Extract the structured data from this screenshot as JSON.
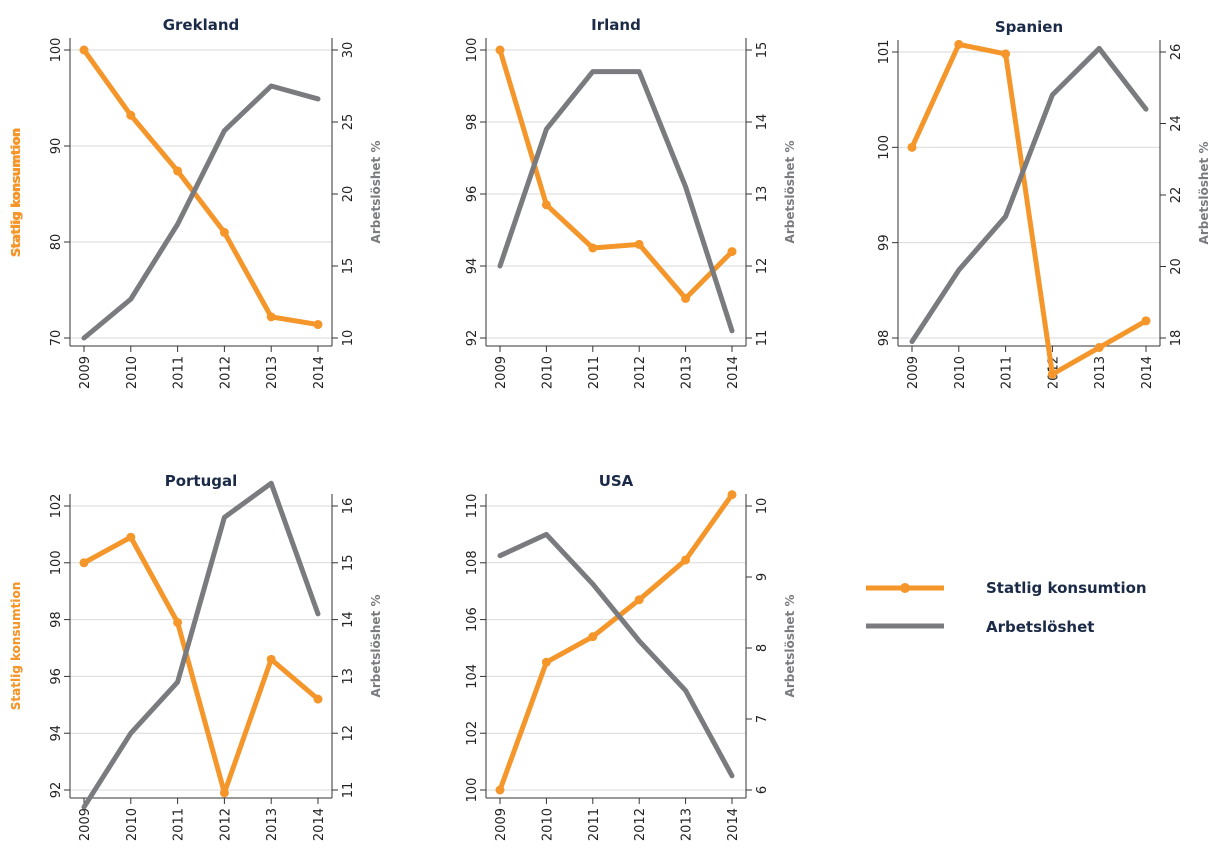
{
  "colors": {
    "consumption": "#f5962b",
    "unemployment": "#7a7b7f",
    "grid": "#d9d9d9",
    "axis": "#333333"
  },
  "legend": {
    "consumption_label": "Statlig konsumtion",
    "unemployment_label": "Arbetslöshet"
  },
  "chart_data": [
    {
      "type": "line",
      "title": "Grekland",
      "ylabel": "Statlig konsumtion",
      "y2label": "Arbetslöshet %",
      "x": [
        2009,
        2010,
        2011,
        2012,
        2013,
        2014
      ],
      "ylim": [
        70,
        100
      ],
      "yticks": [
        70,
        80,
        90,
        100
      ],
      "y2lim": [
        10,
        30
      ],
      "y2ticks": [
        10,
        15,
        20,
        25,
        30
      ],
      "series": [
        {
          "name": "Statlig konsumtion",
          "axis": "left",
          "markers": true,
          "values": [
            100,
            93.2,
            87.4,
            81,
            72.2,
            71.4
          ]
        },
        {
          "name": "Arbetslöshet",
          "axis": "right",
          "markers": false,
          "values": [
            10,
            12.7,
            17.9,
            24.4,
            27.5,
            26.6
          ]
        }
      ]
    },
    {
      "type": "line",
      "title": "Irland",
      "ylabel": "Statlig konsumtion",
      "y2label": "Arbetslöshet %",
      "x": [
        2009,
        2010,
        2011,
        2012,
        2013,
        2014
      ],
      "ylim": [
        92,
        100
      ],
      "yticks": [
        92,
        94,
        96,
        98,
        100
      ],
      "y2lim": [
        11,
        15
      ],
      "y2ticks": [
        11,
        12,
        13,
        14,
        15
      ],
      "series": [
        {
          "name": "Statlig konsumtion",
          "axis": "left",
          "markers": true,
          "values": [
            100,
            95.7,
            94.5,
            94.6,
            93.1,
            94.4
          ]
        },
        {
          "name": "Arbetslöshet",
          "axis": "right",
          "markers": false,
          "values": [
            12,
            13.9,
            14.7,
            14.7,
            13.1,
            11.1
          ]
        }
      ]
    },
    {
      "type": "line",
      "title": "Spanien",
      "ylabel": "Statlig konsumtion",
      "y2label": "Arbetslöshet %",
      "x": [
        2009,
        2010,
        2011,
        2012,
        2013,
        2014
      ],
      "ylim": [
        98,
        101
      ],
      "yticks": [
        98,
        99,
        100,
        101
      ],
      "y2lim": [
        18,
        26
      ],
      "y2ticks": [
        18,
        20,
        22,
        24,
        26
      ],
      "series": [
        {
          "name": "Statlig konsumtion",
          "axis": "left",
          "markers": true,
          "values": [
            100,
            101.08,
            100.98,
            97.62,
            97.9,
            98.18
          ]
        },
        {
          "name": "Arbetslöshet",
          "axis": "right",
          "markers": false,
          "values": [
            17.9,
            19.9,
            21.4,
            24.8,
            26.1,
            24.4
          ]
        }
      ]
    },
    {
      "type": "line",
      "title": "Portugal",
      "ylabel": "Statlig konsumtion",
      "y2label": "Arbetslöshet %",
      "x": [
        2009,
        2010,
        2011,
        2012,
        2013,
        2014
      ],
      "ylim": [
        92,
        102
      ],
      "yticks": [
        92,
        94,
        96,
        98,
        100,
        102
      ],
      "y2lim": [
        11,
        16
      ],
      "y2ticks": [
        11,
        12,
        13,
        14,
        15,
        16
      ],
      "series": [
        {
          "name": "Statlig konsumtion",
          "axis": "left",
          "markers": true,
          "values": [
            100,
            100.9,
            97.9,
            91.9,
            96.6,
            95.2
          ]
        },
        {
          "name": "Arbetslöshet",
          "axis": "right",
          "markers": false,
          "values": [
            10.7,
            12,
            12.9,
            15.8,
            16.4,
            14.1
          ]
        }
      ]
    },
    {
      "type": "line",
      "title": "USA",
      "ylabel": "Statlig konsumtion",
      "y2label": "Arbetslöshet %",
      "x": [
        2009,
        2010,
        2011,
        2012,
        2013,
        2014
      ],
      "ylim": [
        100,
        110
      ],
      "yticks": [
        100,
        102,
        104,
        106,
        108,
        110
      ],
      "y2lim": [
        6,
        10
      ],
      "y2ticks": [
        6,
        7,
        8,
        9,
        10
      ],
      "series": [
        {
          "name": "Statlig konsumtion",
          "axis": "left",
          "markers": true,
          "values": [
            100,
            104.5,
            105.4,
            106.7,
            108.1,
            110.4
          ]
        },
        {
          "name": "Arbetslöshet",
          "axis": "right",
          "markers": false,
          "values": [
            9.3,
            9.6,
            8.9,
            8.1,
            7.4,
            6.2
          ]
        }
      ]
    }
  ]
}
